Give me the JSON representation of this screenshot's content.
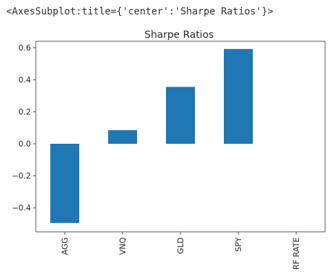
{
  "output_repr": "<AxesSubplot:title={'center':'Sharpe Ratios'}>",
  "chart_data": {
    "type": "bar",
    "title": "Sharpe Ratios",
    "xlabel": "",
    "ylabel": "",
    "categories": [
      "AGG",
      "VNQ",
      "GLD",
      "SPY",
      "RF RATE"
    ],
    "values": [
      -0.495,
      0.085,
      0.355,
      0.592,
      0.0
    ],
    "ylim": [
      -0.55,
      0.64
    ],
    "yticks": [
      0.6,
      0.4,
      0.2,
      0.0,
      -0.2,
      -0.4
    ],
    "ytick_labels": [
      "0.6",
      "0.4",
      "0.2",
      "0.0",
      "−0.2",
      "−0.4"
    ],
    "bar_color": "#1f77b4",
    "grid": false,
    "legend": "none"
  }
}
